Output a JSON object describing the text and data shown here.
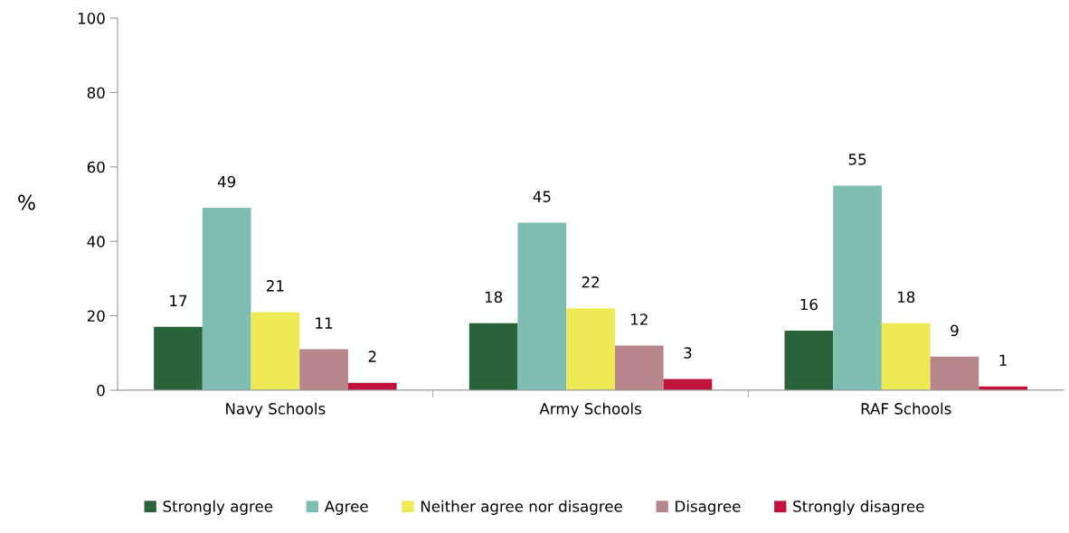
{
  "chart_data": {
    "type": "bar",
    "ylabel": "%",
    "categories": [
      "Navy Schools",
      "Army Schools",
      "RAF Schools"
    ],
    "series": [
      {
        "name": "Strongly agree",
        "color": "#2a6339",
        "values": [
          17,
          18,
          16
        ]
      },
      {
        "name": "Agree",
        "color": "#7dbdb2",
        "values": [
          49,
          45,
          55
        ]
      },
      {
        "name": "Neither agree nor disagree",
        "color": "#eeea55",
        "values": [
          21,
          22,
          18
        ]
      },
      {
        "name": "Disagree",
        "color": "#b6868a",
        "values": [
          11,
          12,
          9
        ]
      },
      {
        "name": "Strongly disagree",
        "color": "#c0143c",
        "values": [
          2,
          3,
          1
        ]
      }
    ],
    "ylim": [
      0,
      100
    ],
    "yticks": [
      0,
      20,
      40,
      60,
      80,
      100
    ],
    "data_labels": true,
    "grid": false,
    "legend": "bottom"
  }
}
